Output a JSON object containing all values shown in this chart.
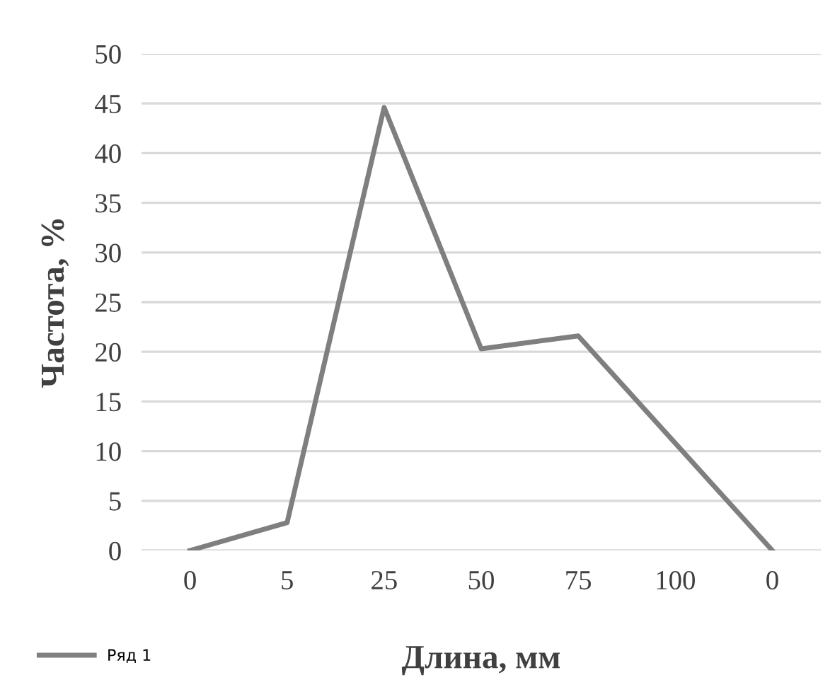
{
  "chart_data": {
    "type": "line",
    "xlabel": "Длина, мм",
    "ylabel": "Частота, %",
    "categories": [
      "0",
      "5",
      "25",
      "50",
      "75",
      "100",
      "0"
    ],
    "series": [
      {
        "name": "Ряд 1",
        "color": "#7f7f7f",
        "values": [
          0,
          2.8,
          44.6,
          20.3,
          21.6,
          10.8,
          0
        ]
      }
    ],
    "ylim": [
      0,
      50
    ],
    "yticks": [
      0,
      5,
      10,
      15,
      20,
      25,
      30,
      35,
      40,
      45,
      50
    ],
    "grid": "y",
    "legend": "bottom left",
    "marker": "none",
    "line_style": "solid"
  }
}
